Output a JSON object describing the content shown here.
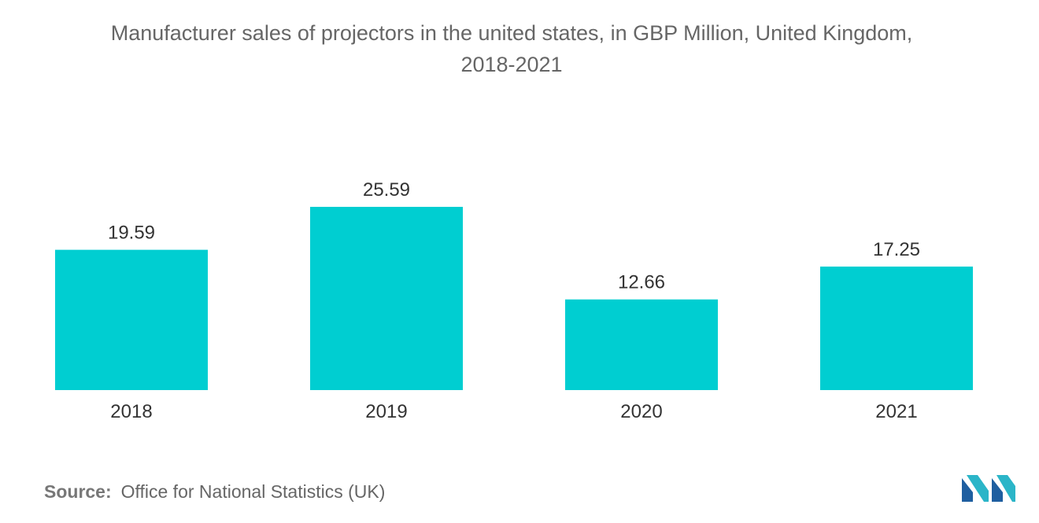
{
  "chart_data": {
    "type": "bar",
    "title": "Manufacturer sales of projectors in the united states, in GBP Million, United Kingdom, 2018-2021",
    "title_lines": [
      "Manufacturer sales of projectors in the united states, in GBP Million, United Kingdom,",
      "2018-2021"
    ],
    "categories": [
      "2018",
      "2019",
      "2020",
      "2021"
    ],
    "values": [
      19.59,
      25.59,
      12.66,
      17.25
    ],
    "value_labels": [
      "19.59",
      "25.59",
      "12.66",
      "17.25"
    ],
    "xlabel": "",
    "ylabel": "",
    "ylim": [
      0,
      25.59
    ],
    "grid": false,
    "legend": "none",
    "bar_color": "#00CED1"
  },
  "source": {
    "label": "Source:",
    "text": "Office for National Statistics (UK)"
  },
  "logo": {
    "icon": "mordor-intelligence-logo-icon",
    "colors": [
      "#1f5fa0",
      "#2bb5c8"
    ]
  }
}
